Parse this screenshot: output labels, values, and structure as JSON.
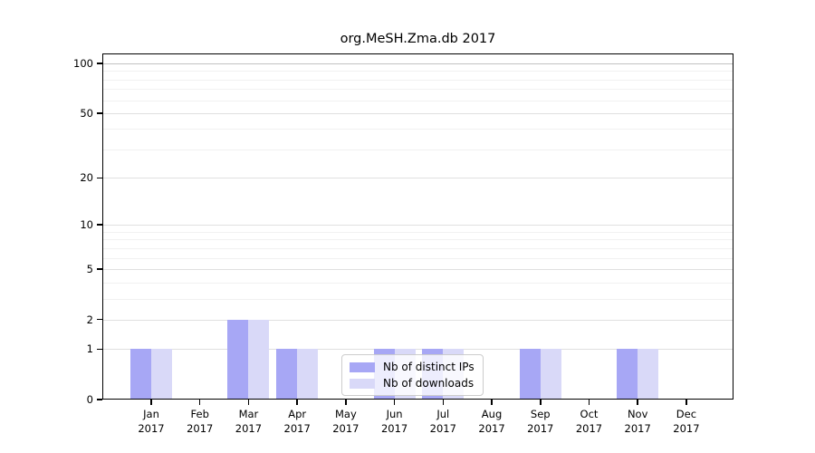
{
  "chart_data": {
    "type": "bar",
    "title": "org.MeSH.Zma.db 2017",
    "categories": [
      "Jan 2017",
      "Feb 2017",
      "Mar 2017",
      "Apr 2017",
      "May 2017",
      "Jun 2017",
      "Jul 2017",
      "Aug 2017",
      "Sep 2017",
      "Oct 2017",
      "Nov 2017",
      "Dec 2017"
    ],
    "series": [
      {
        "name": "Nb of distinct IPs",
        "color": "#a7a7f5",
        "values": [
          1,
          0,
          2,
          1,
          0,
          1,
          1,
          0,
          1,
          0,
          1,
          0
        ]
      },
      {
        "name": "Nb of downloads",
        "color": "#d9d9f8",
        "values": [
          1,
          0,
          2,
          1,
          0,
          1,
          1,
          0,
          1,
          0,
          1,
          0
        ]
      }
    ],
    "xlabel": "",
    "ylabel": "",
    "yscale": "log1p",
    "ylim": [
      0,
      115
    ],
    "yticks": [
      0,
      1,
      2,
      5,
      10,
      20,
      50,
      100
    ],
    "minor_gridlines": [
      3,
      4,
      6,
      7,
      8,
      9,
      30,
      40,
      60,
      70,
      80,
      90
    ],
    "grid": "on",
    "legend_position": "lower-center-inside",
    "colors": {
      "spine": "#000000",
      "gridline_top": "#c2c2c2",
      "gridline_major": "#e0e0e0",
      "gridline_minor": "#f1f1f1",
      "legend_border": "#cccccc",
      "background": "#ffffff"
    }
  }
}
